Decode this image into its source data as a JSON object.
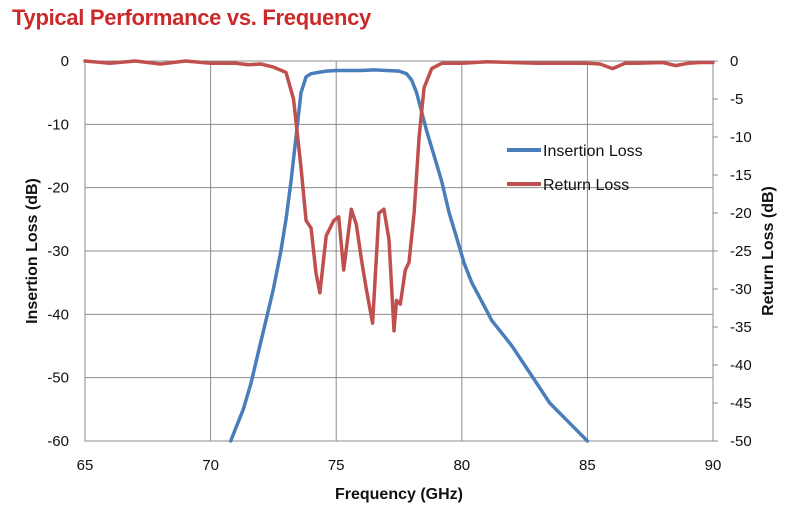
{
  "chart_data": {
    "type": "line",
    "title": "Typical Performance vs. Frequency",
    "xlabel": "Frequency (GHz)",
    "ylabel_left": "Insertion Loss (dB)",
    "ylabel_right": "Return Loss (dB)",
    "xlim": [
      65,
      90
    ],
    "ylim_left": [
      -60,
      0
    ],
    "ylim_right": [
      -50,
      0
    ],
    "x_ticks": [
      65,
      70,
      75,
      80,
      85,
      90
    ],
    "y_ticks_left": [
      0,
      -10,
      -20,
      -30,
      -40,
      -50,
      -60
    ],
    "y_ticks_right": [
      0,
      -5,
      -10,
      -15,
      -20,
      -25,
      -30,
      -35,
      -40,
      -45,
      -50
    ],
    "grid": true,
    "legend_position": "right-center",
    "colors": {
      "insertion": "#4a7ebb",
      "return": "#c0504d",
      "title": "#cc2a2a"
    },
    "series": [
      {
        "name": "Insertion Loss",
        "axis": "left",
        "color": "#4a7ebb",
        "x": [
          70.8,
          71.0,
          71.3,
          71.6,
          71.9,
          72.2,
          72.5,
          72.8,
          73.0,
          73.2,
          73.4,
          73.6,
          73.8,
          74.0,
          74.3,
          74.6,
          75.0,
          75.5,
          76.0,
          76.5,
          77.0,
          77.5,
          77.8,
          78.0,
          78.2,
          78.4,
          78.6,
          78.9,
          79.2,
          79.5,
          79.8,
          80.1,
          80.4,
          80.8,
          81.2,
          81.6,
          82.0,
          82.5,
          83.0,
          83.5,
          84.0,
          84.5,
          85.0
        ],
        "y": [
          -60,
          -58,
          -55,
          -51,
          -46,
          -41,
          -36,
          -30,
          -25,
          -19,
          -12,
          -5,
          -2.5,
          -2,
          -1.8,
          -1.6,
          -1.5,
          -1.5,
          -1.5,
          -1.4,
          -1.5,
          -1.6,
          -2,
          -3,
          -5,
          -8,
          -11,
          -15,
          -19,
          -24,
          -28,
          -32,
          -35,
          -38,
          -41,
          -43,
          -45,
          -48,
          -51,
          -54,
          -56,
          -58,
          -60
        ]
      },
      {
        "name": "Return Loss",
        "axis": "right",
        "color": "#c0504d",
        "x": [
          65,
          66,
          67,
          68,
          69,
          70,
          71,
          71.5,
          72,
          72.5,
          73,
          73.3,
          73.6,
          73.8,
          74.0,
          74.2,
          74.35,
          74.6,
          74.9,
          75.1,
          75.3,
          75.6,
          75.8,
          76.0,
          76.2,
          76.45,
          76.7,
          76.9,
          77.1,
          77.3,
          77.4,
          77.55,
          77.75,
          77.9,
          78.1,
          78.3,
          78.5,
          78.8,
          79.2,
          79.6,
          80.0,
          81,
          82,
          83,
          84,
          85,
          85.5,
          86,
          86.5,
          87,
          88,
          88.5,
          89,
          89.5,
          90
        ],
        "y": [
          0,
          -0.3,
          0,
          -0.4,
          0,
          -0.3,
          -0.3,
          -0.5,
          -0.4,
          -0.8,
          -1.5,
          -5,
          -14,
          -21,
          -22,
          -28,
          -30.5,
          -23,
          -21,
          -20.5,
          -27.5,
          -19.5,
          -21.5,
          -26,
          -30,
          -34.5,
          -20,
          -19.5,
          -23.5,
          -35.5,
          -31.5,
          -32,
          -27.5,
          -26.5,
          -20,
          -10,
          -3.5,
          -1,
          -0.3,
          -0.3,
          -0.3,
          -0.1,
          -0.2,
          -0.3,
          -0.3,
          -0.3,
          -0.4,
          -1,
          -0.3,
          -0.3,
          -0.2,
          -0.6,
          -0.3,
          -0.2,
          -0.2
        ]
      }
    ]
  }
}
